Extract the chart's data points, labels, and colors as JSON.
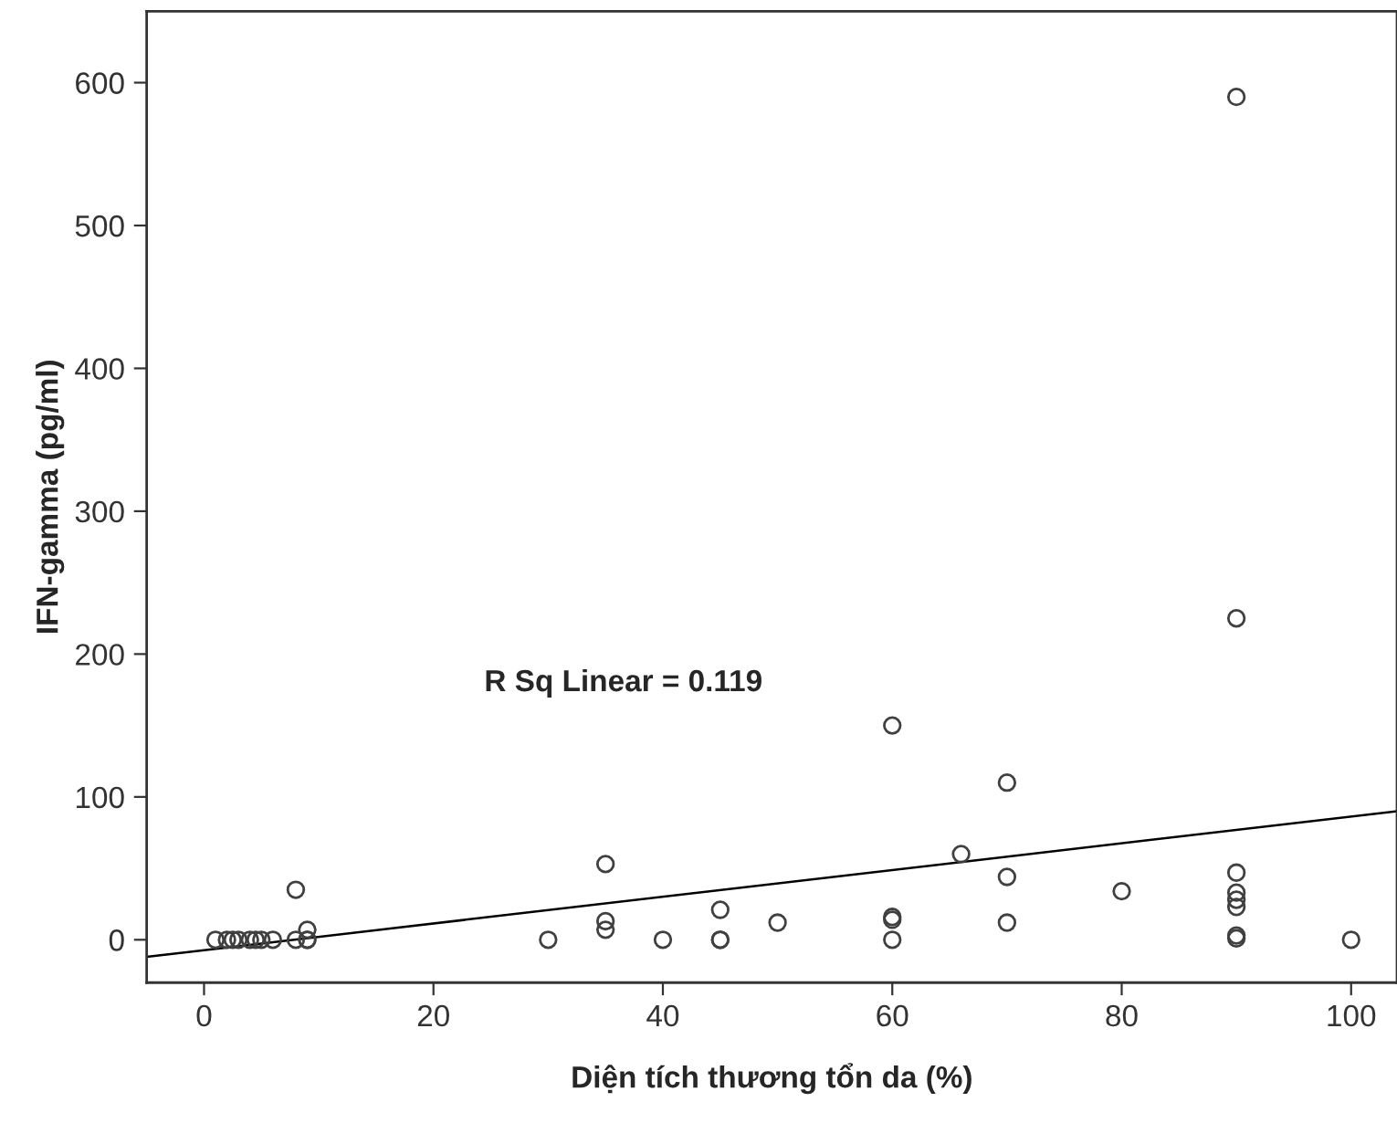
{
  "chart_data": {
    "type": "scatter",
    "xlabel": "Diện tích thương tổn da (%)",
    "ylabel": "IFN-gamma (pg/ml)",
    "annotations": [
      "R Sq Linear = 0.119"
    ],
    "xlim": [
      -5,
      104
    ],
    "ylim": [
      -30,
      650
    ],
    "xticks": [
      0,
      20,
      40,
      60,
      80,
      100
    ],
    "yticks": [
      0,
      100,
      200,
      300,
      400,
      500,
      600
    ],
    "grid": false,
    "legend": false,
    "marker": "circle",
    "series": [
      {
        "color": "#404040",
        "x": [
          1,
          2,
          2.5,
          3,
          4,
          4.5,
          5,
          6,
          8,
          8,
          9,
          9,
          9,
          30,
          35,
          35,
          35,
          40,
          45,
          45,
          45,
          50,
          60,
          60,
          60,
          60,
          66,
          70,
          70,
          70,
          80,
          90,
          90,
          90,
          90,
          90,
          90,
          90,
          90,
          100
        ],
        "values": [
          0,
          0,
          0,
          0,
          0,
          0,
          0,
          0,
          0,
          35,
          0,
          0,
          7,
          0,
          53,
          13,
          7,
          0,
          21,
          0,
          0,
          12,
          150,
          16,
          14,
          0,
          60,
          110,
          44,
          12,
          34,
          590,
          225,
          47,
          33,
          28,
          23,
          1,
          3,
          0
        ]
      },
      {
        "type": "line",
        "color": "#000000",
        "line_style": "solid",
        "marker": "none",
        "x": [
          -5,
          104
        ],
        "values": [
          -12,
          90
        ]
      }
    ]
  }
}
